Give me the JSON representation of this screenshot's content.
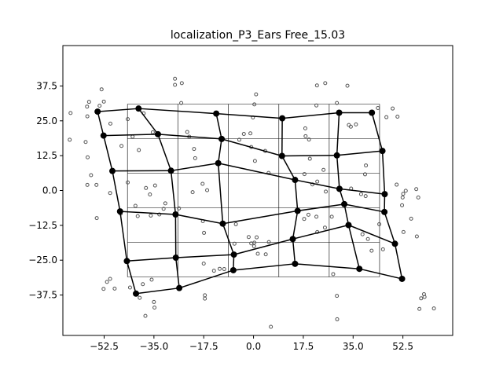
{
  "chart_data": {
    "type": "scatter",
    "title": "localization_P3_Ears Free_15.03",
    "xlabel": "",
    "ylabel": "",
    "xlim": [
      -67,
      70
    ],
    "ylim": [
      -52,
      52
    ],
    "x_ticks": [
      -52.5,
      -35.0,
      -17.5,
      0.0,
      17.5,
      35.0,
      52.5
    ],
    "x_tick_labels": [
      "−52.5",
      "−35.0",
      "−17.5",
      "0.0",
      "17.5",
      "35.0",
      "52.5"
    ],
    "y_ticks": [
      37.5,
      25.0,
      12.5,
      0.0,
      -12.5,
      -25.0,
      -37.5
    ],
    "y_tick_labels": [
      "37.5",
      "25.0",
      "12.5",
      "0.0",
      "−12.5",
      "−25.0",
      "−37.5"
    ],
    "grid": false,
    "reference_grid": {
      "x_lines": [
        -44.3,
        -26.6,
        -8.9,
        8.9,
        26.6,
        44.3
      ],
      "y_lines": [
        31,
        18.6,
        6.2,
        -6.2,
        -18.6,
        -31
      ],
      "color": "#000000"
    },
    "mesh_nodes": [
      [
        -54.8,
        28.3
      ],
      [
        -40.4,
        29.4
      ],
      [
        -13.1,
        27.6
      ],
      [
        10.1,
        25.9
      ],
      [
        30.1,
        27.9
      ],
      [
        41.6,
        27.9
      ],
      [
        -52.7,
        19.7
      ],
      [
        -33.6,
        20.2
      ],
      [
        -11.2,
        18.5
      ],
      [
        10.0,
        12.4
      ],
      [
        29.3,
        12.6
      ],
      [
        45.3,
        14.2
      ],
      [
        -49.6,
        7.0
      ],
      [
        -29.0,
        7.1
      ],
      [
        -12.4,
        9.8
      ],
      [
        14.6,
        3.8
      ],
      [
        30.2,
        0.6
      ],
      [
        46.1,
        -1.3
      ],
      [
        -46.9,
        -7.5
      ],
      [
        -27.4,
        -8.6
      ],
      [
        -10.8,
        -11.9
      ],
      [
        15.5,
        -7.3
      ],
      [
        31.9,
        -4.9
      ],
      [
        46.0,
        -7.7
      ],
      [
        -44.5,
        -25.3
      ],
      [
        -27.3,
        -24.1
      ],
      [
        -6.9,
        -23.0
      ],
      [
        13.8,
        -17.4
      ],
      [
        33.4,
        -12.4
      ],
      [
        49.7,
        -19.1
      ],
      [
        -41.3,
        -37.0
      ],
      [
        -26.1,
        -35.0
      ],
      [
        -7.1,
        -28.6
      ],
      [
        14.6,
        -26.3
      ],
      [
        37.2,
        -28.1
      ],
      [
        52.2,
        -31.7
      ]
    ],
    "mesh_rows": [
      [
        0,
        1,
        2,
        3,
        4,
        5
      ],
      [
        6,
        7,
        8,
        9,
        10,
        11
      ],
      [
        12,
        13,
        14,
        15,
        16,
        17
      ],
      [
        18,
        19,
        20,
        21,
        22,
        23
      ],
      [
        24,
        25,
        26,
        27,
        28,
        29
      ],
      [
        30,
        31,
        32,
        33,
        34,
        35
      ]
    ],
    "mesh_color": "#000000",
    "response_points": [
      [
        -64.3,
        27.8
      ],
      [
        -58.5,
        30.1
      ],
      [
        -57.8,
        31.8
      ],
      [
        -54.1,
        30.4
      ],
      [
        -53.4,
        36.3
      ],
      [
        -52.6,
        31.9
      ],
      [
        -50.3,
        24.0
      ],
      [
        -58.4,
        26.6
      ],
      [
        -46.4,
        16.0
      ],
      [
        -44.2,
        25.6
      ],
      [
        -38.6,
        27.7
      ],
      [
        -42.5,
        19.3
      ],
      [
        -40.3,
        14.5
      ],
      [
        -35.4,
        20.9
      ],
      [
        -64.6,
        18.2
      ],
      [
        -59.0,
        17.4
      ],
      [
        -58.3,
        11.9
      ],
      [
        -57.1,
        5.5
      ],
      [
        -58.4,
        2.0
      ],
      [
        -55.2,
        2.0
      ],
      [
        -50.4,
        -0.9
      ],
      [
        -44.2,
        2.9
      ],
      [
        -37.8,
        0.9
      ],
      [
        -36.4,
        -1.4
      ],
      [
        -34.6,
        1.8
      ],
      [
        -41.5,
        -5.5
      ],
      [
        -40.7,
        -9.2
      ],
      [
        -36.1,
        -9.0
      ],
      [
        -31.6,
        -6.6
      ],
      [
        -55.1,
        -9.9
      ],
      [
        -25.4,
        31.4
      ],
      [
        -27.6,
        37.9
      ],
      [
        -27.6,
        40.1
      ],
      [
        -25.2,
        38.5
      ],
      [
        -23.3,
        21.0
      ],
      [
        -22.6,
        19.3
      ],
      [
        -20.9,
        14.9
      ],
      [
        -20.5,
        11.6
      ],
      [
        -17.9,
        2.4
      ],
      [
        -21.4,
        -0.6
      ],
      [
        -16.3,
        0.1
      ],
      [
        -17.8,
        -11.0
      ],
      [
        -17.4,
        -15.2
      ],
      [
        -17.5,
        -26.2
      ],
      [
        -11.9,
        -28.1
      ],
      [
        -13.9,
        -28.8
      ],
      [
        -10.3,
        -28.2
      ],
      [
        -5.0,
        18.2
      ],
      [
        -3.4,
        20.3
      ],
      [
        0.9,
        34.5
      ],
      [
        0.3,
        30.9
      ],
      [
        -0.2,
        26.2
      ],
      [
        -1.1,
        20.5
      ],
      [
        -0.8,
        15.6
      ],
      [
        0.5,
        10.6
      ],
      [
        4.1,
        14.2
      ],
      [
        5.3,
        6.3
      ],
      [
        -6.2,
        -12.1
      ],
      [
        -6.7,
        -19.1
      ],
      [
        -1.7,
        -16.7
      ],
      [
        0.3,
        -18.7
      ],
      [
        1.1,
        -16.8
      ],
      [
        -0.8,
        -19.0
      ],
      [
        0.2,
        -20.0
      ],
      [
        1.5,
        -22.7
      ],
      [
        4.3,
        -22.9
      ],
      [
        5.4,
        -18.5
      ],
      [
        6.1,
        -48.9
      ],
      [
        18.2,
        22.3
      ],
      [
        18.3,
        19.5
      ],
      [
        19.5,
        18.3
      ],
      [
        17.9,
        5.9
      ],
      [
        19.8,
        11.4
      ],
      [
        22.1,
        30.5
      ],
      [
        20.7,
        2.2
      ],
      [
        22.4,
        3.2
      ],
      [
        24.6,
        7.4
      ],
      [
        25.4,
        -0.4
      ],
      [
        22.1,
        -9.4
      ],
      [
        19.3,
        -8.7
      ],
      [
        17.8,
        -10.2
      ],
      [
        22.4,
        -14.9
      ],
      [
        25.1,
        -13.3
      ],
      [
        27.5,
        -9.4
      ],
      [
        22.3,
        37.7
      ],
      [
        25.2,
        38.5
      ],
      [
        33.0,
        37.6
      ],
      [
        29.3,
        31.4
      ],
      [
        33.5,
        23.5
      ],
      [
        34.2,
        22.9
      ],
      [
        36.0,
        23.7
      ],
      [
        28.0,
        -30.0
      ],
      [
        29.3,
        -37.8
      ],
      [
        29.4,
        -46.2
      ],
      [
        34.3,
        0.7
      ],
      [
        37.8,
        -1.3
      ],
      [
        39.2,
        5.8
      ],
      [
        39.5,
        9.0
      ],
      [
        39.4,
        -2.0
      ],
      [
        38.3,
        -15.7
      ],
      [
        40.2,
        -17.4
      ],
      [
        41.5,
        -21.6
      ],
      [
        45.5,
        -21.1
      ],
      [
        44.2,
        -12.1
      ],
      [
        43.7,
        29.6
      ],
      [
        46.7,
        26.3
      ],
      [
        48.9,
        29.4
      ],
      [
        50.6,
        26.5
      ],
      [
        50.3,
        2.1
      ],
      [
        52.6,
        -1.2
      ],
      [
        52.4,
        -2.5
      ],
      [
        52.2,
        -5.3
      ],
      [
        53.5,
        -0.1
      ],
      [
        55.4,
        -10.1
      ],
      [
        57.4,
        -16.5
      ],
      [
        57.9,
        -2.5
      ],
      [
        57.2,
        0.5
      ],
      [
        52.7,
        -14.9
      ],
      [
        58.9,
        -38.7
      ],
      [
        59.9,
        -37.2
      ],
      [
        60.1,
        -38.2
      ],
      [
        58.3,
        -42.5
      ],
      [
        63.4,
        -42.3
      ],
      [
        -26.2,
        -6.4
      ],
      [
        -46.7,
        -8.3
      ],
      [
        -48.8,
        -35.2
      ],
      [
        -52.7,
        -35.3
      ],
      [
        -51.5,
        -32.8
      ],
      [
        -50.4,
        -31.7
      ],
      [
        -43.4,
        -34.8
      ],
      [
        -40.0,
        -38.5
      ],
      [
        -38.9,
        -33.6
      ],
      [
        -35.8,
        -32.0
      ],
      [
        -35.0,
        -40.0
      ],
      [
        -34.8,
        -42.0
      ],
      [
        -38.0,
        -45.0
      ],
      [
        -17.1,
        -37.6
      ],
      [
        -17.1,
        -38.8
      ],
      [
        -33.1,
        -8.6
      ],
      [
        -31.0,
        -4.6
      ]
    ],
    "response_marker": "hollow circle",
    "response_color": "#555555"
  }
}
